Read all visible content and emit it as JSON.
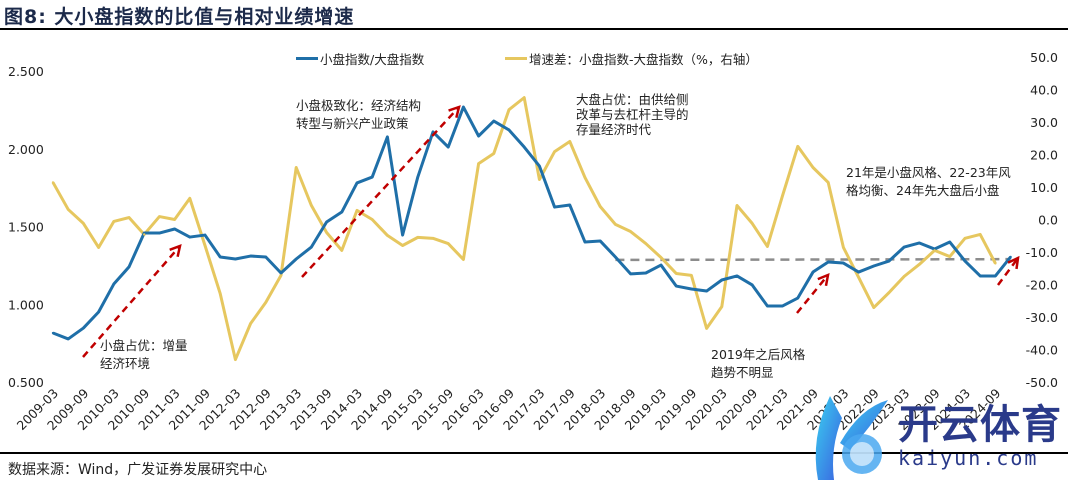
{
  "title": "图8:  大小盘指数的比值与相对业绩增速",
  "source": "数据来源：Wind，广发证券发展研究中心",
  "watermark": {
    "cn": "开云体育",
    "en": "kaiyun.com"
  },
  "legend": {
    "series1": "小盘指数/大盘指数",
    "series2": "增速差：小盘指数-大盘指数（%，右轴）"
  },
  "annotations": [
    {
      "lines": [
        "小盘占优：增量",
        "经济环境"
      ]
    },
    {
      "lines": [
        "小盘极致化：经济结构",
        "转型与新兴产业政策"
      ]
    },
    {
      "lines": [
        "大盘占优：由供给侧",
        "改革与去杠杆主导的",
        "存量经济时代"
      ]
    },
    {
      "lines": [
        "2019年之后风格",
        "趋势不明显"
      ]
    },
    {
      "lines": [
        "21年是小盘风格、22-23年风",
        "格均衡、24年先大盘后小盘"
      ]
    }
  ],
  "chart_data": {
    "type": "line",
    "title": "大小盘指数的比值与相对业绩增速",
    "x_tick_labels": [
      "2009-03",
      "2009-09",
      "2010-03",
      "2010-09",
      "2011-03",
      "2011-09",
      "2012-03",
      "2012-09",
      "2013-03",
      "2013-09",
      "2014-03",
      "2014-09",
      "2015-03",
      "2015-09",
      "2016-03",
      "2016-09",
      "2017-03",
      "2017-09",
      "2018-03",
      "2018-09",
      "2019-03",
      "2019-09",
      "2020-03",
      "2020-09",
      "2021-03",
      "2021-09",
      "2022-03",
      "2022-09",
      "2023-03",
      "2023-09",
      "2024-03",
      "2024-09"
    ],
    "x_frequency": "quarterly",
    "y_left": {
      "ylim": [
        0.5,
        2.5
      ],
      "ticks": [
        "0.500",
        "1.000",
        "1.500",
        "2.000",
        "2.500"
      ]
    },
    "y_right": {
      "ylim": [
        -50,
        50
      ],
      "ticks": [
        "-50.0",
        "-40.0",
        "-30.0",
        "-20.0",
        "-10.0",
        "0.0",
        "10.0",
        "20.0",
        "30.0",
        "40.0",
        "50.0"
      ]
    },
    "grid": false,
    "legend_position": "top",
    "series": [
      {
        "name": "小盘指数/大盘指数",
        "axis": "left",
        "color": "#1f6fa8",
        "values": [
          0.815,
          0.777,
          0.847,
          0.95,
          1.13,
          1.24,
          1.458,
          1.458,
          1.484,
          1.432,
          1.445,
          1.304,
          1.291,
          1.31,
          1.304,
          1.201,
          1.291,
          1.368,
          1.529,
          1.593,
          1.78,
          1.818,
          2.076,
          1.445,
          1.818,
          2.108,
          2.011,
          2.268,
          2.082,
          2.178,
          2.121,
          2.011,
          1.889,
          1.625,
          1.638,
          1.4,
          1.407,
          1.304,
          1.195,
          1.201,
          1.252,
          1.117,
          1.098,
          1.085,
          1.156,
          1.182,
          1.124,
          0.989,
          0.989,
          1.04,
          1.207,
          1.272,
          1.265,
          1.207,
          1.246,
          1.278,
          1.368,
          1.394,
          1.355,
          1.4,
          1.278,
          1.182,
          1.182,
          1.304
        ]
      },
      {
        "name": "增速差：小盘指数-大盘指数（%，右轴）",
        "axis": "right",
        "color": "#e6c75f",
        "values": [
          11.4,
          3.1,
          -1.2,
          -8.6,
          -0.6,
          0.6,
          -4.6,
          0.9,
          0.0,
          6.5,
          -8.0,
          -22.8,
          -43.1,
          -32.0,
          -25.5,
          -17.2,
          16.0,
          4.3,
          -4.0,
          -9.5,
          2.8,
          0.0,
          -4.9,
          -8.0,
          -5.5,
          -5.8,
          -7.4,
          -12.3,
          17.2,
          20.3,
          33.8,
          37.5,
          12.3,
          20.9,
          24.0,
          12.9,
          4.0,
          -1.5,
          -3.7,
          -7.4,
          -11.7,
          -16.6,
          -17.2,
          -33.5,
          -26.8,
          4.3,
          -1.2,
          -8.3,
          7.4,
          22.5,
          16.0,
          11.4,
          -8.6,
          -17.8,
          -27.1,
          -22.5,
          -17.5,
          -13.8,
          -9.5,
          -11.4,
          -5.8,
          -4.6,
          -13.5
        ]
      }
    ],
    "reference_line": {
      "axis": "left",
      "style": "dashed",
      "color": "#8c8c8c",
      "from": "2018-06",
      "to": "2024-12",
      "values": [
        1.285,
        1.29
      ]
    },
    "arrow_color": "#c00000"
  }
}
